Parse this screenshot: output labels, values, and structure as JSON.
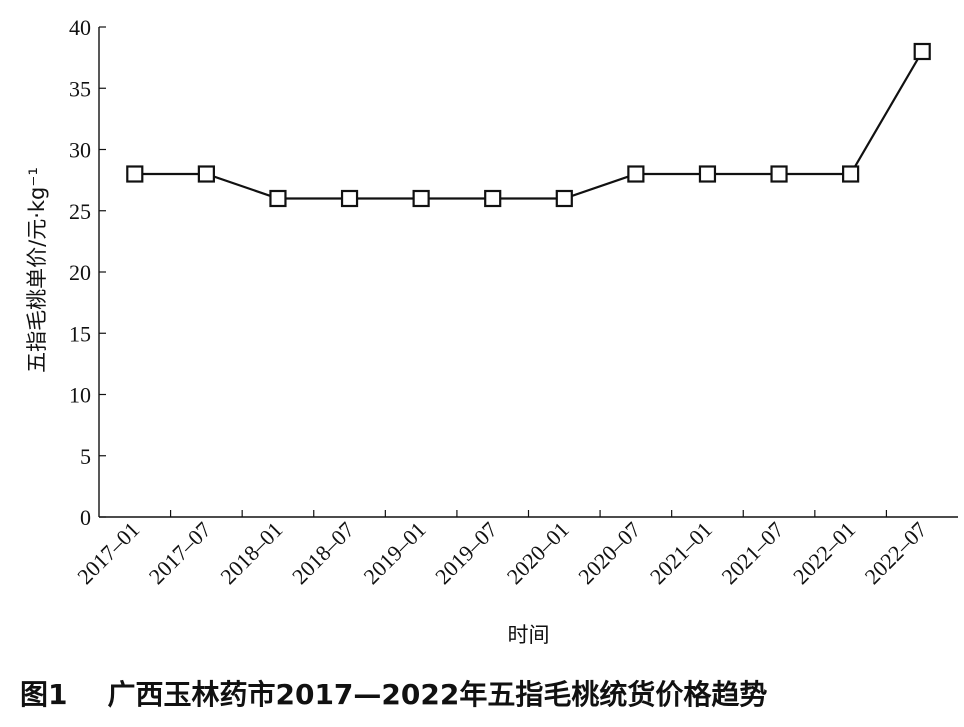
{
  "chart_data": {
    "type": "line",
    "categories": [
      "2017–01",
      "2017–07",
      "2018–01",
      "2018–07",
      "2019–01",
      "2019–07",
      "2020–01",
      "2020–07",
      "2021–01",
      "2021–07",
      "2022–01",
      "2022–07"
    ],
    "series": [
      {
        "values": [
          28,
          28,
          26,
          26,
          26,
          26,
          26,
          28,
          28,
          28,
          28,
          38
        ],
        "marker": "open-square",
        "color": "#111111"
      }
    ],
    "ylim": [
      0,
      40
    ],
    "yticks": [
      0,
      5,
      10,
      15,
      20,
      25,
      30,
      35,
      40
    ],
    "xlabel": "时间",
    "ylabel": "五指毛桃单价/元·kg⁻¹",
    "grid": false
  },
  "caption": {
    "figure_label": "图1",
    "title": "广西玉林药市2017—2022年五指毛桃统货价格趋势"
  }
}
